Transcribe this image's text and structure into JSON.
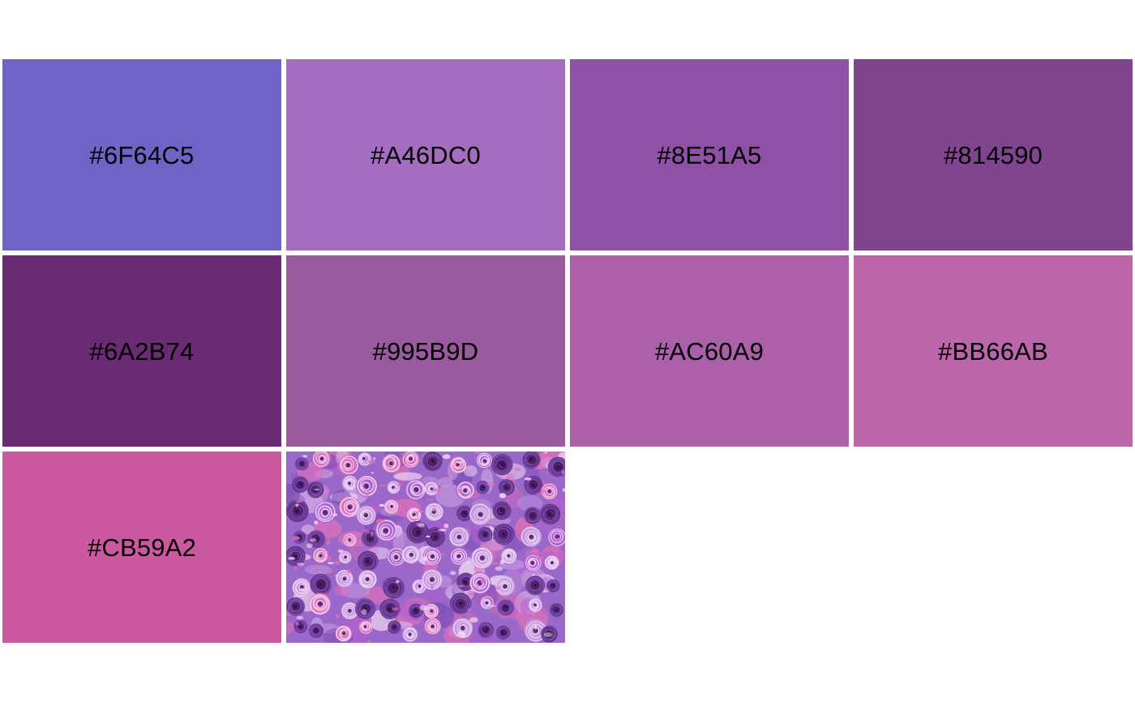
{
  "swatches": [
    {
      "hex": "#6F64C5",
      "label": "#6F64C5"
    },
    {
      "hex": "#A46DC0",
      "label": "#A46DC0"
    },
    {
      "hex": "#8E51A5",
      "label": "#8E51A5"
    },
    {
      "hex": "#814590",
      "label": "#814590"
    },
    {
      "hex": "#6A2B74",
      "label": "#6A2B74"
    },
    {
      "hex": "#995B9D",
      "label": "#995B9D"
    },
    {
      "hex": "#AC60A9",
      "label": "#AC60A9"
    },
    {
      "hex": "#BB66AB",
      "label": "#BB66AB"
    },
    {
      "hex": "#CB59A2",
      "label": "#CB59A2"
    }
  ],
  "image": {
    "name": "source-painting-thumbnail",
    "colors": [
      "#9a68c8",
      "#7d4fb8",
      "#5a2a7a",
      "#c79ae0",
      "#e070b8",
      "#f0d8f4",
      "#3a1450",
      "#b060d0"
    ]
  }
}
